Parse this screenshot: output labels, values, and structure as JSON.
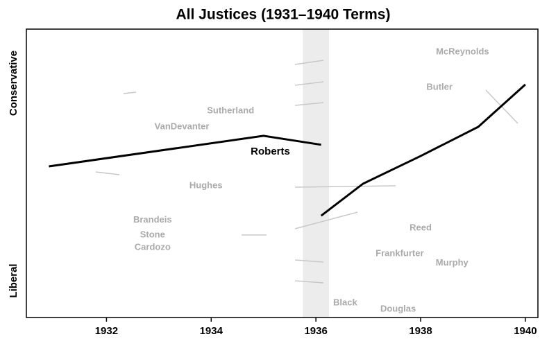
{
  "chart_data": {
    "type": "line",
    "title": "All Justices (1931–1940 Terms)",
    "y_top_label": "Conservative",
    "y_bottom_label": "Liberal",
    "x": [
      1930.9,
      1935,
      1936.1,
      1936.1,
      1936.1,
      1936.9,
      1938,
      1939.1,
      1940
    ],
    "series": [
      {
        "name": "Roberts",
        "color": "#000000",
        "values": [
          52.4,
          63,
          59.9,
          null,
          35.3,
          46.4,
          56,
          66.1,
          80.8
        ]
      }
    ],
    "label_color": "#aaaaaa",
    "labels": [
      {
        "text": "McReynolds",
        "x": 1938.8,
        "y": 92
      },
      {
        "text": "Butler",
        "x": 1938.36,
        "y": 79.8
      },
      {
        "text": "Sutherland",
        "x": 1934.37,
        "y": 71.6
      },
      {
        "text": "VanDevanter",
        "x": 1933.44,
        "y": 66.1
      },
      {
        "text": "Hughes",
        "x": 1933.9,
        "y": 45.7
      },
      {
        "text": "Brandeis",
        "x": 1932.88,
        "y": 33.7
      },
      {
        "text": "Stone",
        "x": 1932.88,
        "y": 28.6
      },
      {
        "text": "Cardozo",
        "x": 1932.88,
        "y": 24.3
      },
      {
        "text": "Reed",
        "x": 1938,
        "y": 31
      },
      {
        "text": "Frankfurter",
        "x": 1937.6,
        "y": 22.1
      },
      {
        "text": "Murphy",
        "x": 1938.6,
        "y": 18.8
      },
      {
        "text": "Black",
        "x": 1936.56,
        "y": 5
      },
      {
        "text": "Douglas",
        "x": 1937.57,
        "y": 2.9
      }
    ],
    "series_label": {
      "x": 1935.13,
      "y": 57.5
    },
    "shade": [
      1935.75,
      1936.25
    ],
    "xlim": [
      1930.47,
      1940.24
    ],
    "ylim": [
      0,
      100
    ],
    "xticks": [
      1932,
      1934,
      1936,
      1938,
      1940
    ]
  }
}
